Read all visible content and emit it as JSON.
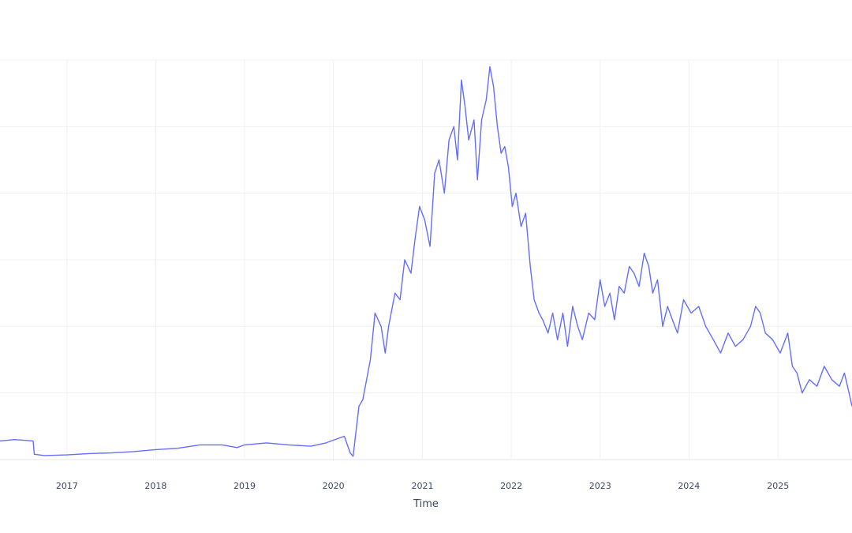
{
  "chart_data": {
    "type": "line",
    "title": "",
    "xlabel": "Time",
    "ylabel": "",
    "x_tick_labels": [
      "2017",
      "2018",
      "2019",
      "2020",
      "2021",
      "2022",
      "2023",
      "2024",
      "2025"
    ],
    "xlim": [
      "2016-04-01",
      "2025-11-01"
    ],
    "ylim": [
      0,
      6
    ],
    "grid": true,
    "legend": "none",
    "line_color": "#636efa",
    "series": [
      {
        "x": [
          "2016-04-01",
          "2016-06-01",
          "2016-08-15",
          "2016-08-20",
          "2016-10-01",
          "2017-01-01",
          "2017-04-01",
          "2017-07-01",
          "2017-10-01",
          "2018-01-01",
          "2018-04-01",
          "2018-07-01",
          "2018-10-01",
          "2018-12-01",
          "2019-01-01",
          "2019-04-01",
          "2019-07-01",
          "2019-10-01",
          "2019-12-01",
          "2020-02-15",
          "2020-03-10",
          "2020-03-22",
          "2020-04-15",
          "2020-05-01",
          "2020-06-01",
          "2020-06-20",
          "2020-07-15",
          "2020-08-01",
          "2020-08-15",
          "2020-09-10",
          "2020-10-01",
          "2020-10-20",
          "2020-11-15",
          "2020-12-01",
          "2020-12-20",
          "2021-01-10",
          "2021-02-01",
          "2021-02-20",
          "2021-03-10",
          "2021-04-01",
          "2021-04-20",
          "2021-05-10",
          "2021-05-25",
          "2021-06-10",
          "2021-06-25",
          "2021-07-10",
          "2021-08-01",
          "2021-08-15",
          "2021-09-01",
          "2021-09-20",
          "2021-10-05",
          "2021-10-20",
          "2021-11-05",
          "2021-11-20",
          "2021-12-05",
          "2021-12-20",
          "2022-01-05",
          "2022-01-20",
          "2022-02-10",
          "2022-03-01",
          "2022-03-20",
          "2022-04-05",
          "2022-04-25",
          "2022-05-10",
          "2022-06-01",
          "2022-06-20",
          "2022-07-10",
          "2022-08-01",
          "2022-08-20",
          "2022-09-10",
          "2022-10-01",
          "2022-10-20",
          "2022-11-15",
          "2022-12-10",
          "2023-01-01",
          "2023-01-20",
          "2023-02-10",
          "2023-03-01",
          "2023-03-20",
          "2023-04-10",
          "2023-05-01",
          "2023-05-20",
          "2023-06-10",
          "2023-07-01",
          "2023-07-20",
          "2023-08-05",
          "2023-08-25",
          "2023-09-15",
          "2023-10-05",
          "2023-10-25",
          "2023-11-15",
          "2023-12-10",
          "2024-01-10",
          "2024-02-10",
          "2024-03-10",
          "2024-04-10",
          "2024-05-10",
          "2024-06-10",
          "2024-07-10",
          "2024-08-10",
          "2024-09-10",
          "2024-10-01",
          "2024-10-20",
          "2024-11-10",
          "2024-12-10",
          "2025-01-10",
          "2025-02-10",
          "2025-03-01",
          "2025-03-20",
          "2025-04-10",
          "2025-05-10",
          "2025-06-10",
          "2025-07-10",
          "2025-08-10",
          "2025-09-10",
          "2025-10-01",
          "2025-10-20",
          "2025-11-01"
        ],
        "y": [
          0.28,
          0.3,
          0.28,
          0.08,
          0.06,
          0.07,
          0.09,
          0.1,
          0.12,
          0.15,
          0.17,
          0.22,
          0.22,
          0.18,
          0.22,
          0.25,
          0.22,
          0.2,
          0.25,
          0.35,
          0.1,
          0.05,
          0.8,
          0.9,
          1.5,
          2.2,
          2.0,
          1.6,
          2.0,
          2.5,
          2.4,
          3.0,
          2.8,
          3.3,
          3.8,
          3.6,
          3.2,
          4.3,
          4.5,
          4.0,
          4.8,
          5.0,
          4.5,
          5.7,
          5.3,
          4.8,
          5.1,
          4.2,
          5.1,
          5.4,
          5.9,
          5.6,
          5.0,
          4.6,
          4.7,
          4.4,
          3.8,
          4.0,
          3.5,
          3.7,
          2.9,
          2.4,
          2.2,
          2.1,
          1.9,
          2.2,
          1.8,
          2.2,
          1.7,
          2.3,
          2.0,
          1.8,
          2.2,
          2.1,
          2.7,
          2.3,
          2.5,
          2.1,
          2.6,
          2.5,
          2.9,
          2.8,
          2.6,
          3.1,
          2.9,
          2.5,
          2.7,
          2.0,
          2.3,
          2.1,
          1.9,
          2.4,
          2.2,
          2.3,
          2.0,
          1.8,
          1.6,
          1.9,
          1.7,
          1.8,
          2.0,
          2.3,
          2.2,
          1.9,
          1.8,
          1.6,
          1.9,
          1.4,
          1.3,
          1.0,
          1.2,
          1.1,
          1.4,
          1.2,
          1.1,
          1.3,
          1.0,
          0.8
        ]
      }
    ]
  }
}
